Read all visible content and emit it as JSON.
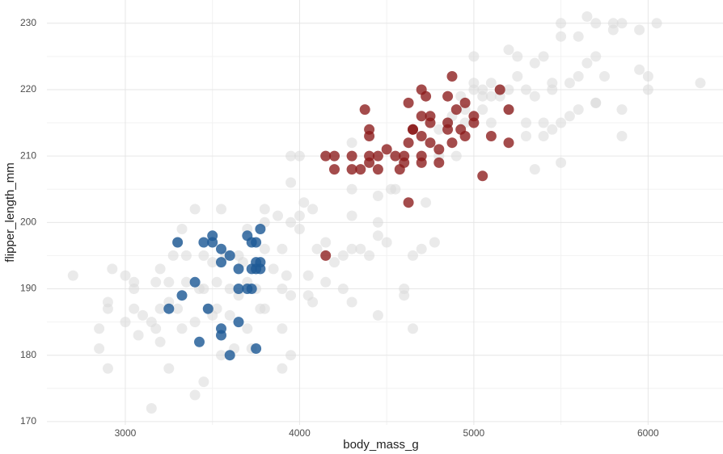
{
  "chart_data": {
    "type": "scatter",
    "title": "",
    "xlabel": "body_mass_g",
    "ylabel": "flipper_length_mm",
    "xlim": [
      2550,
      6430
    ],
    "ylim": [
      169.5,
      233.5
    ],
    "x_ticks": [
      3000,
      4000,
      5000,
      6000
    ],
    "y_ticks": [
      170,
      180,
      190,
      200,
      210,
      220,
      230
    ],
    "x_minor_ticks": [
      3500,
      4500,
      5500
    ],
    "y_minor_ticks": [
      175,
      185,
      195,
      205,
      215,
      225
    ],
    "grid": true,
    "legend": "none",
    "colors": {
      "background_points": "#d9d9d9",
      "adelie_highlight": "#1f5a96",
      "gentoo_highlight": "#8b1a1a"
    },
    "series": [
      {
        "role": "background",
        "points": [
          [
            2700,
            192
          ],
          [
            2850,
            184
          ],
          [
            2850,
            181
          ],
          [
            2900,
            188
          ],
          [
            2900,
            187
          ],
          [
            2900,
            178
          ],
          [
            2925,
            193
          ],
          [
            3000,
            185
          ],
          [
            3000,
            192
          ],
          [
            3050,
            191
          ],
          [
            3050,
            190
          ],
          [
            3050,
            187
          ],
          [
            3075,
            183
          ],
          [
            3100,
            186
          ],
          [
            3150,
            185
          ],
          [
            3150,
            172
          ],
          [
            3175,
            191
          ],
          [
            3175,
            184
          ],
          [
            3200,
            187
          ],
          [
            3200,
            182
          ],
          [
            3200,
            193
          ],
          [
            3250,
            191
          ],
          [
            3250,
            178
          ],
          [
            3250,
            188
          ],
          [
            3275,
            195
          ],
          [
            3300,
            197
          ],
          [
            3300,
            187
          ],
          [
            3325,
            199
          ],
          [
            3325,
            184
          ],
          [
            3350,
            195
          ],
          [
            3350,
            191
          ],
          [
            3400,
            202
          ],
          [
            3400,
            185
          ],
          [
            3400,
            174
          ],
          [
            3425,
            190
          ],
          [
            3450,
            176
          ],
          [
            3450,
            190
          ],
          [
            3450,
            195
          ],
          [
            3475,
            187
          ],
          [
            3500,
            194
          ],
          [
            3500,
            186
          ],
          [
            3525,
            191
          ],
          [
            3525,
            187
          ],
          [
            3550,
            202
          ],
          [
            3550,
            180
          ],
          [
            3575,
            195
          ],
          [
            3600,
            190
          ],
          [
            3600,
            186
          ],
          [
            3625,
            181
          ],
          [
            3650,
            195
          ],
          [
            3650,
            189
          ],
          [
            3675,
            194
          ],
          [
            3700,
            184
          ],
          [
            3700,
            191
          ],
          [
            3700,
            199
          ],
          [
            3725,
            181
          ],
          [
            3750,
            190
          ],
          [
            3750,
            193
          ],
          [
            3775,
            187
          ],
          [
            3800,
            196
          ],
          [
            3800,
            200
          ],
          [
            3800,
            187
          ],
          [
            3800,
            202
          ],
          [
            3850,
            193
          ],
          [
            3875,
            201
          ],
          [
            3900,
            190
          ],
          [
            3900,
            196
          ],
          [
            3900,
            184
          ],
          [
            3900,
            178
          ],
          [
            3925,
            192
          ],
          [
            3950,
            189
          ],
          [
            3950,
            180
          ],
          [
            3950,
            206
          ],
          [
            3950,
            210
          ],
          [
            3950,
            200
          ],
          [
            4000,
            201
          ],
          [
            4000,
            210
          ],
          [
            4000,
            199
          ],
          [
            4025,
            203
          ],
          [
            4050,
            192
          ],
          [
            4050,
            189
          ],
          [
            4075,
            188
          ],
          [
            4075,
            202
          ],
          [
            4100,
            196
          ],
          [
            4150,
            197
          ],
          [
            4150,
            191
          ],
          [
            4200,
            194
          ],
          [
            4250,
            195
          ],
          [
            4250,
            190
          ],
          [
            4300,
            196
          ],
          [
            4300,
            201
          ],
          [
            4300,
            205
          ],
          [
            4300,
            212
          ],
          [
            4300,
            188
          ],
          [
            4350,
            196
          ],
          [
            4400,
            195
          ],
          [
            4450,
            186
          ],
          [
            4450,
            198
          ],
          [
            4450,
            200
          ],
          [
            4450,
            204
          ],
          [
            4500,
            197
          ],
          [
            4525,
            205
          ],
          [
            4550,
            205
          ],
          [
            4600,
            189
          ],
          [
            4600,
            190
          ],
          [
            4650,
            184
          ],
          [
            4650,
            195
          ],
          [
            4700,
            196
          ],
          [
            4725,
            203
          ],
          [
            4775,
            197
          ],
          [
            4800,
            210
          ],
          [
            4850,
            215
          ],
          [
            4875,
            216
          ],
          [
            4900,
            210
          ],
          [
            4925,
            219
          ],
          [
            4950,
            215
          ],
          [
            5000,
            221
          ],
          [
            5000,
            225
          ],
          [
            5000,
            220
          ],
          [
            5050,
            220
          ],
          [
            5050,
            217
          ],
          [
            5100,
            221
          ],
          [
            5150,
            220
          ],
          [
            5150,
            219
          ],
          [
            5200,
            226
          ],
          [
            5200,
            220
          ],
          [
            5250,
            222
          ],
          [
            5250,
            225
          ],
          [
            5300,
            215
          ],
          [
            5300,
            220
          ],
          [
            5350,
            224
          ],
          [
            5350,
            208
          ],
          [
            5350,
            219
          ],
          [
            5400,
            225
          ],
          [
            5400,
            213
          ],
          [
            5400,
            215
          ],
          [
            5450,
            221
          ],
          [
            5450,
            214
          ],
          [
            5500,
            228
          ],
          [
            5500,
            230
          ],
          [
            5500,
            215
          ],
          [
            5500,
            209
          ],
          [
            5550,
            216
          ],
          [
            5600,
            228
          ],
          [
            5600,
            222
          ],
          [
            5600,
            217
          ],
          [
            5650,
            231
          ],
          [
            5650,
            224
          ],
          [
            5700,
            218
          ],
          [
            5700,
            225
          ],
          [
            5700,
            230
          ],
          [
            5750,
            222
          ],
          [
            5800,
            229
          ],
          [
            5800,
            230
          ],
          [
            5850,
            230
          ],
          [
            5850,
            217
          ],
          [
            5850,
            213
          ],
          [
            5950,
            229
          ],
          [
            5950,
            223
          ],
          [
            6000,
            220
          ],
          [
            6000,
            222
          ],
          [
            6050,
            230
          ],
          [
            6300,
            221
          ],
          [
            5550,
            221
          ],
          [
            5200,
            217
          ],
          [
            5100,
            215
          ],
          [
            4950,
            217
          ],
          [
            5300,
            213
          ],
          [
            5450,
            220
          ],
          [
            5100,
            219
          ],
          [
            4800,
            214
          ],
          [
            5700,
            218
          ],
          [
            5050,
            219
          ]
        ]
      },
      {
        "role": "highlight-group-1",
        "points": [
          [
            3250,
            187
          ],
          [
            3300,
            197
          ],
          [
            3325,
            189
          ],
          [
            3400,
            191
          ],
          [
            3425,
            182
          ],
          [
            3450,
            197
          ],
          [
            3475,
            187
          ],
          [
            3500,
            198
          ],
          [
            3500,
            197
          ],
          [
            3550,
            196
          ],
          [
            3550,
            194
          ],
          [
            3550,
            184
          ],
          [
            3550,
            183
          ],
          [
            3600,
            195
          ],
          [
            3600,
            180
          ],
          [
            3650,
            193
          ],
          [
            3650,
            190
          ],
          [
            3650,
            185
          ],
          [
            3700,
            198
          ],
          [
            3700,
            190
          ],
          [
            3725,
            197
          ],
          [
            3725,
            190
          ],
          [
            3750,
            197
          ],
          [
            3750,
            194
          ],
          [
            3750,
            193
          ],
          [
            3750,
            181
          ],
          [
            3775,
            199
          ],
          [
            3775,
            194
          ],
          [
            3775,
            193
          ],
          [
            3725,
            193
          ]
        ]
      },
      {
        "role": "highlight-group-2",
        "points": [
          [
            4150,
            210
          ],
          [
            4150,
            195
          ],
          [
            4200,
            210
          ],
          [
            4200,
            208
          ],
          [
            4300,
            210
          ],
          [
            4300,
            208
          ],
          [
            4350,
            208
          ],
          [
            4375,
            217
          ],
          [
            4400,
            214
          ],
          [
            4400,
            213
          ],
          [
            4400,
            210
          ],
          [
            4400,
            209
          ],
          [
            4450,
            210
          ],
          [
            4450,
            208
          ],
          [
            4500,
            211
          ],
          [
            4550,
            210
          ],
          [
            4575,
            208
          ],
          [
            4600,
            209
          ],
          [
            4600,
            210
          ],
          [
            4625,
            218
          ],
          [
            4625,
            212
          ],
          [
            4625,
            203
          ],
          [
            4650,
            214
          ],
          [
            4650,
            214
          ],
          [
            4700,
            213
          ],
          [
            4700,
            216
          ],
          [
            4700,
            220
          ],
          [
            4700,
            210
          ],
          [
            4700,
            209
          ],
          [
            4725,
            219
          ],
          [
            4750,
            212
          ],
          [
            4750,
            216
          ],
          [
            4750,
            215
          ],
          [
            4800,
            211
          ],
          [
            4800,
            209
          ],
          [
            4850,
            219
          ],
          [
            4850,
            215
          ],
          [
            4850,
            214
          ],
          [
            4875,
            212
          ],
          [
            4875,
            222
          ],
          [
            4900,
            217
          ],
          [
            4925,
            214
          ],
          [
            4950,
            213
          ],
          [
            4950,
            218
          ],
          [
            5000,
            215
          ],
          [
            5000,
            216
          ],
          [
            5050,
            207
          ],
          [
            5100,
            213
          ],
          [
            5150,
            220
          ],
          [
            5200,
            217
          ],
          [
            5200,
            212
          ]
        ]
      }
    ]
  }
}
